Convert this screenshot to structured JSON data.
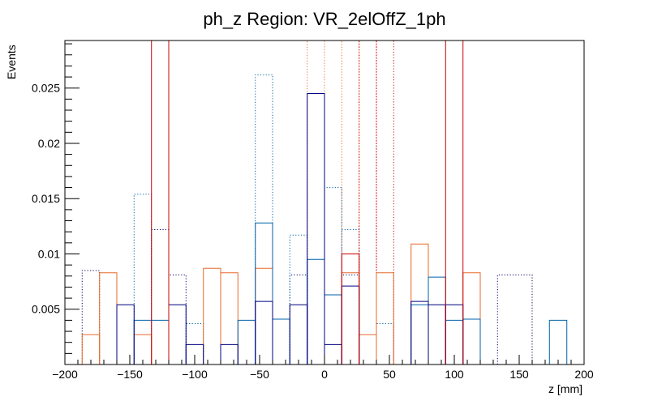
{
  "chart_data": {
    "type": "bar",
    "title": "ph_z Region: VR_2elOffZ_1ph",
    "xlabel": "z [mm]",
    "ylabel": "Events",
    "xlim": [
      -200,
      200
    ],
    "ylim": [
      0,
      0.0293
    ],
    "grid": false,
    "legend": "none",
    "bin_width": 13.33,
    "x_ticks": [
      -200,
      -150,
      -100,
      -50,
      0,
      50,
      100,
      150,
      200
    ],
    "x_tick_labels": [
      "−200",
      "−150",
      "−100",
      "−50",
      "0",
      "50",
      "100",
      "150",
      "200"
    ],
    "y_ticks": [
      0.005,
      0.01,
      0.015,
      0.02,
      0.025
    ],
    "y_tick_labels": [
      "0.005",
      "0.01",
      "0.015",
      "0.02",
      "0.025"
    ],
    "series": [
      {
        "name": "dotted-navy",
        "color": "#000066",
        "style": "dotted",
        "bins": [
          [
            -186.7,
            -173.3,
            0.0085
          ],
          [
            -133.3,
            -120.0,
            0.0122
          ],
          [
            -120.0,
            -106.7,
            0.0081
          ],
          [
            -26.7,
            -13.3,
            0.0081
          ],
          [
            13.3,
            26.7,
            0.0081
          ],
          [
            133.3,
            160.0,
            0.0081
          ]
        ]
      },
      {
        "name": "dotted-blue",
        "color": "#0060a8",
        "style": "dotted",
        "bins": [
          [
            -146.7,
            -133.3,
            0.0154
          ],
          [
            -106.7,
            -93.3,
            0.0037
          ],
          [
            -53.3,
            -40.0,
            0.0262
          ],
          [
            -26.7,
            -13.3,
            0.0117
          ],
          [
            0.0,
            13.3,
            0.016
          ],
          [
            13.3,
            26.7,
            0.0122
          ],
          [
            40.0,
            53.3,
            0.0037
          ]
        ]
      },
      {
        "name": "dotted-orange",
        "color": "#e8692a",
        "style": "dotted",
        "bins": [
          [
            -13.3,
            0.0,
            0.0293
          ],
          [
            13.3,
            26.7,
            0.0293
          ]
        ]
      },
      {
        "name": "dotted-red",
        "color": "#cc0000",
        "style": "dotted",
        "bins": [
          [
            26.7,
            40.0,
            0.0293
          ],
          [
            40.0,
            53.3,
            0.0293
          ]
        ]
      },
      {
        "name": "solid-orange",
        "color": "#e8692a",
        "style": "solid",
        "bins": [
          [
            -186.7,
            -173.3,
            0.0027
          ],
          [
            -173.3,
            -160.0,
            0.0083
          ],
          [
            -146.7,
            -133.3,
            0.0027
          ],
          [
            -93.3,
            -80.0,
            0.0087
          ],
          [
            -80.0,
            -66.7,
            0.0083
          ],
          [
            -53.3,
            -40.0,
            0.0087
          ],
          [
            13.3,
            26.7,
            0.0083
          ],
          [
            26.7,
            40.0,
            0.0027
          ],
          [
            40.0,
            53.3,
            0.0083
          ],
          [
            66.7,
            80.0,
            0.0109
          ],
          [
            106.7,
            120.0,
            0.0083
          ]
        ]
      },
      {
        "name": "solid-blue",
        "color": "#0060a8",
        "style": "solid",
        "bins": [
          [
            -146.7,
            -120.0,
            0.004
          ],
          [
            -66.7,
            -53.3,
            0.004
          ],
          [
            -53.3,
            -40.0,
            0.0128
          ],
          [
            -40.0,
            -26.7,
            0.0041
          ],
          [
            -13.3,
            0.0,
            0.0095
          ],
          [
            0.0,
            13.3,
            0.0063
          ],
          [
            66.7,
            80.0,
            0.0054
          ],
          [
            80.0,
            93.3,
            0.0079
          ],
          [
            93.3,
            106.7,
            0.004
          ],
          [
            106.7,
            120.0,
            0.0041
          ],
          [
            173.3,
            186.7,
            0.004
          ]
        ]
      },
      {
        "name": "solid-navy",
        "color": "#000080",
        "style": "solid",
        "bins": [
          [
            -160.0,
            -146.7,
            0.0054
          ],
          [
            -120.0,
            -106.7,
            0.0054
          ],
          [
            -106.7,
            -93.3,
            0.0018
          ],
          [
            -80.0,
            -66.7,
            0.0018
          ],
          [
            -53.3,
            -40.0,
            0.0057
          ],
          [
            -26.7,
            -13.3,
            0.0054
          ],
          [
            -13.3,
            0.0,
            0.0245
          ],
          [
            0.0,
            13.3,
            0.0018
          ],
          [
            13.3,
            26.7,
            0.0071
          ],
          [
            66.7,
            80.0,
            0.0057
          ],
          [
            80.0,
            93.3,
            0.0054
          ],
          [
            93.3,
            106.7,
            0.0054
          ]
        ]
      },
      {
        "name": "solid-red",
        "color": "#cc0000",
        "style": "solid",
        "bins": [
          [
            -133.3,
            -120.0,
            0.0293
          ],
          [
            13.3,
            26.7,
            0.01
          ],
          [
            93.3,
            106.7,
            0.0293
          ]
        ]
      }
    ]
  }
}
